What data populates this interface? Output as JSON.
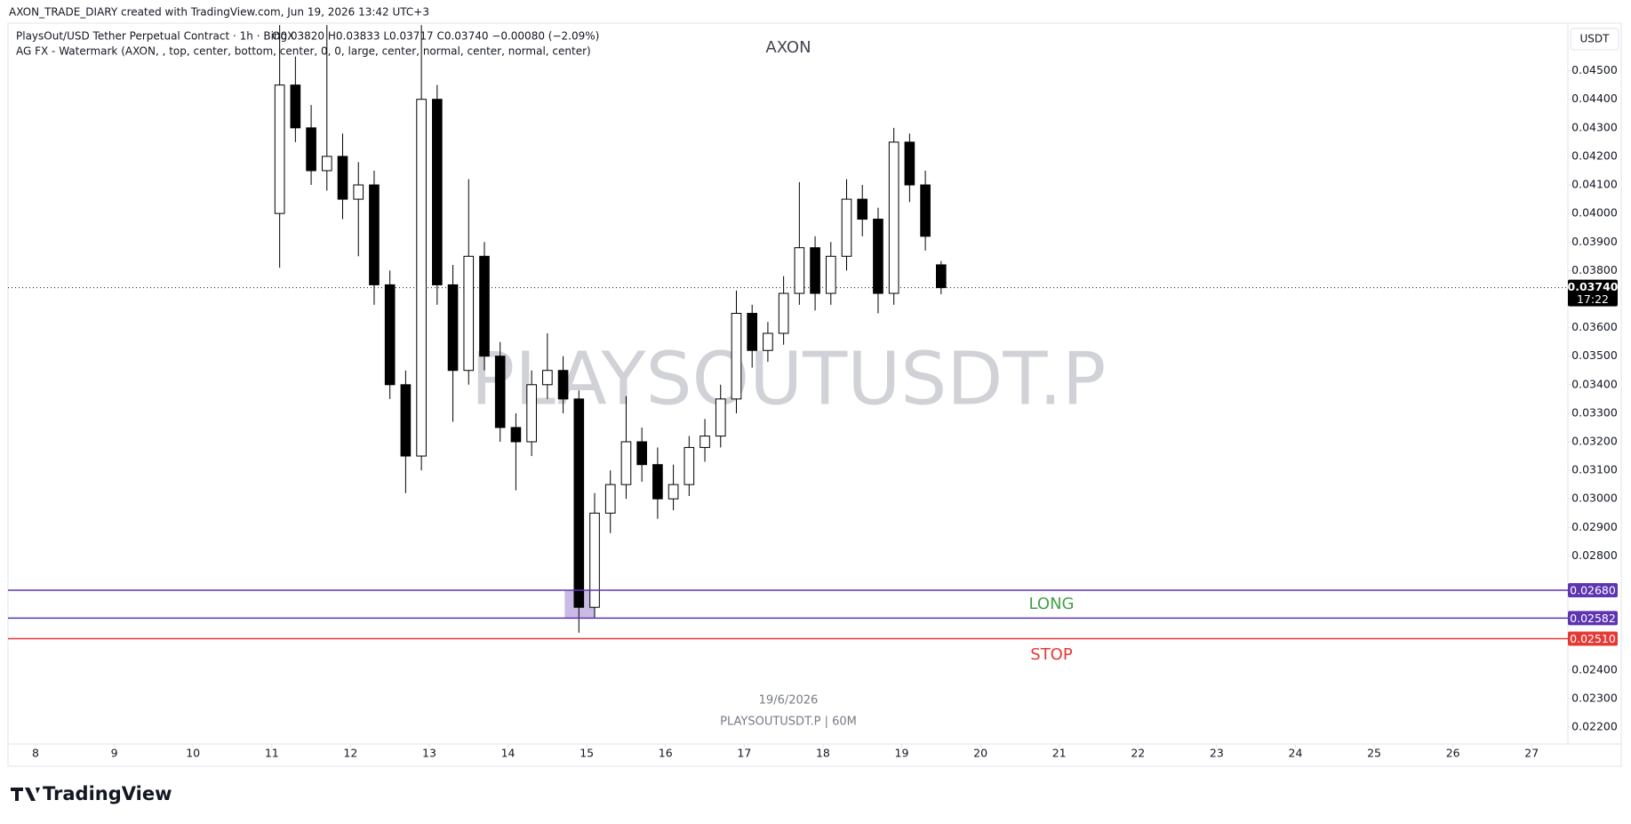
{
  "header": "AXON_TRADE_DIARY created with TradingView.com, Jun 19, 2026 13:42 UTC+3",
  "legend": {
    "symbol": "PlaysOut/USD Tether Perpetual Contract · 1h · BingX",
    "ohlc": "O0.03820 H0.03833 L0.03717 C0.03740 −0.00080 (−2.09%)",
    "indicator": "AG FX - Watermark (AXON, , top, center, bottom, center, 0, 0, large, center, normal, center, normal, center)"
  },
  "currency": "USDT",
  "watermark_top": "AXON",
  "watermark": "PLAYSOUTUSDT.P",
  "date_line": "19/6/2026",
  "symbol_line": "PLAYSOUTUSDT.P | 60M",
  "brand": "TradingView",
  "chart_data": {
    "type": "candlestick",
    "up_color": "#ffffff",
    "down_color": "#000000",
    "wick_color": "#000000",
    "x": [
      11.1,
      11.3,
      11.5,
      11.7,
      11.9,
      12.1,
      12.3,
      12.5,
      12.7,
      12.9,
      13.1,
      13.3,
      13.5,
      13.7,
      13.9,
      14.1,
      14.3,
      14.5,
      14.7,
      14.9,
      15.1,
      15.3,
      15.5,
      15.7,
      15.9,
      16.1,
      16.3,
      16.5,
      16.7,
      16.9,
      17.1,
      17.3,
      17.5,
      17.7,
      17.9,
      18.1,
      18.3,
      18.5,
      18.7,
      18.9,
      19.1,
      19.3,
      19.5
    ],
    "open": [
      0.04,
      0.0445,
      0.043,
      0.0415,
      0.042,
      0.0405,
      0.041,
      0.0375,
      0.034,
      0.0315,
      0.044,
      0.0375,
      0.0345,
      0.0385,
      0.035,
      0.0325,
      0.032,
      0.034,
      0.0345,
      0.0335,
      0.0262,
      0.0295,
      0.0305,
      0.032,
      0.0312,
      0.03,
      0.0305,
      0.0318,
      0.0322,
      0.0335,
      0.0365,
      0.0352,
      0.0358,
      0.0372,
      0.0388,
      0.0372,
      0.0385,
      0.0405,
      0.0398,
      0.0372,
      0.0425,
      0.041,
      0.0382
    ],
    "high": [
      0.0466,
      0.0455,
      0.0438,
      0.0466,
      0.0428,
      0.0418,
      0.0415,
      0.038,
      0.0345,
      0.0466,
      0.0445,
      0.0382,
      0.0412,
      0.039,
      0.0355,
      0.033,
      0.0345,
      0.0358,
      0.035,
      0.0338,
      0.0302,
      0.031,
      0.0336,
      0.0325,
      0.0318,
      0.0312,
      0.0322,
      0.0328,
      0.034,
      0.0373,
      0.0368,
      0.0362,
      0.0378,
      0.0411,
      0.0392,
      0.039,
      0.0412,
      0.041,
      0.0402,
      0.043,
      0.0428,
      0.0415,
      0.03833
    ],
    "low": [
      0.0381,
      0.0425,
      0.041,
      0.0408,
      0.0398,
      0.0385,
      0.0368,
      0.0335,
      0.0302,
      0.031,
      0.0368,
      0.0327,
      0.034,
      0.0345,
      0.032,
      0.0303,
      0.0315,
      0.0335,
      0.033,
      0.02531,
      0.0258,
      0.0288,
      0.03,
      0.0306,
      0.0293,
      0.0296,
      0.0301,
      0.0313,
      0.0318,
      0.033,
      0.0346,
      0.0348,
      0.0354,
      0.0368,
      0.0366,
      0.0368,
      0.038,
      0.0392,
      0.0365,
      0.0368,
      0.0404,
      0.0387,
      0.03717
    ],
    "close": [
      0.0445,
      0.043,
      0.0415,
      0.042,
      0.0405,
      0.041,
      0.0375,
      0.034,
      0.0315,
      0.044,
      0.0375,
      0.0345,
      0.0385,
      0.035,
      0.0325,
      0.032,
      0.034,
      0.0345,
      0.0335,
      0.0262,
      0.0295,
      0.0305,
      0.032,
      0.0312,
      0.03,
      0.0305,
      0.0318,
      0.0322,
      0.0335,
      0.0365,
      0.0352,
      0.0358,
      0.0372,
      0.0388,
      0.0372,
      0.0385,
      0.0405,
      0.0398,
      0.0372,
      0.0425,
      0.041,
      0.0392,
      0.0374
    ],
    "xlim": [
      7.65,
      27.46
    ],
    "xticks": [
      8,
      9,
      10,
      11,
      12,
      13,
      14,
      15,
      16,
      17,
      18,
      19,
      20,
      21,
      22,
      23,
      24,
      25,
      26,
      27
    ],
    "ylim": [
      0.02141,
      0.04667
    ],
    "yticks": [
      {
        "value": 0.045,
        "label": "0.04500"
      },
      {
        "value": 0.044,
        "label": "0.04400"
      },
      {
        "value": 0.043,
        "label": "0.04300"
      },
      {
        "value": 0.042,
        "label": "0.04200"
      },
      {
        "value": 0.041,
        "label": "0.04100"
      },
      {
        "value": 0.04,
        "label": "0.04000"
      },
      {
        "value": 0.039,
        "label": "0.03900"
      },
      {
        "value": 0.038,
        "label": "0.03800"
      },
      {
        "value": 0.036,
        "label": "0.03600"
      },
      {
        "value": 0.035,
        "label": "0.03500"
      },
      {
        "value": 0.034,
        "label": "0.03400"
      },
      {
        "value": 0.033,
        "label": "0.03300"
      },
      {
        "value": 0.032,
        "label": "0.03200"
      },
      {
        "value": 0.031,
        "label": "0.03100"
      },
      {
        "value": 0.03,
        "label": "0.03000"
      },
      {
        "value": 0.029,
        "label": "0.02900"
      },
      {
        "value": 0.028,
        "label": "0.02800"
      },
      {
        "value": 0.024,
        "label": "0.02400"
      },
      {
        "value": 0.023,
        "label": "0.02300"
      },
      {
        "value": 0.022,
        "label": "0.02200"
      }
    ],
    "levels": [
      {
        "value": 0.0268,
        "label": "0.02680",
        "color": "#5e35b1"
      },
      {
        "value": 0.02582,
        "label": "0.02582",
        "color": "#5e35b1"
      },
      {
        "value": 0.0251,
        "label": "0.02510",
        "color": "#e53935"
      }
    ],
    "last_price": {
      "value": 0.0374,
      "label": "0.03740",
      "countdown": "17:22"
    },
    "zone": {
      "xlim": [
        14.72,
        15.1
      ],
      "color": "#b39ddb"
    },
    "annotations": [
      {
        "text": "LONG",
        "color": "#43a047"
      },
      {
        "text": "STOP",
        "color": "#e53935"
      }
    ]
  }
}
